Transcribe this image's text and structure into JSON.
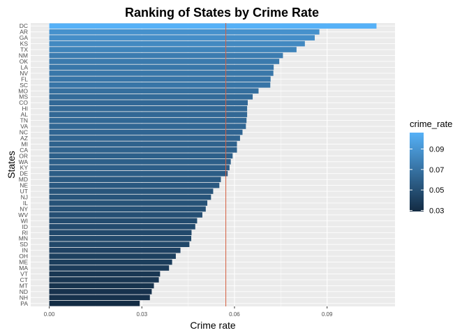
{
  "chart_data": {
    "type": "bar",
    "orientation": "horizontal",
    "title": "Ranking of States by Crime Rate",
    "xlabel": "Crime rate",
    "ylabel": "States",
    "xlim": [
      -0.006,
      0.112
    ],
    "xticks": [
      0.0,
      0.03,
      0.06,
      0.09
    ],
    "xtick_labels": [
      "0.00",
      "0.03",
      "0.06",
      "0.09"
    ],
    "reference_line": {
      "x": 0.0572,
      "color": "#d55e3f"
    },
    "grid": true,
    "legend": {
      "title": "crime_rate",
      "position": "right",
      "min": 0.029,
      "max": 0.106,
      "breaks": [
        0.03,
        0.05,
        0.07,
        0.09
      ],
      "break_labels": [
        "0.03",
        "0.05",
        "0.07",
        "0.09"
      ],
      "color_low": "#132b43",
      "color_high": "#56b1f7"
    },
    "categories": [
      "DC",
      "AR",
      "GA",
      "KS",
      "TX",
      "NM",
      "OK",
      "LA",
      "NV",
      "FL",
      "SC",
      "MO",
      "MS",
      "CO",
      "HI",
      "AL",
      "TN",
      "VA",
      "NC",
      "AZ",
      "MI",
      "CA",
      "OR",
      "WA",
      "KY",
      "DE",
      "MD",
      "NE",
      "UT",
      "NJ",
      "IL",
      "NY",
      "WV",
      "WI",
      "ID",
      "RI",
      "MN",
      "SD",
      "IN",
      "OH",
      "ME",
      "MA",
      "VT",
      "CT",
      "MT",
      "ND",
      "NH",
      "PA"
    ],
    "values": [
      0.106,
      0.0875,
      0.086,
      0.0828,
      0.0801,
      0.0757,
      0.0745,
      0.0727,
      0.0726,
      0.0717,
      0.0716,
      0.0678,
      0.0659,
      0.0643,
      0.0641,
      0.0641,
      0.0639,
      0.0637,
      0.0626,
      0.0618,
      0.0608,
      0.0608,
      0.0594,
      0.0588,
      0.0584,
      0.0578,
      0.0556,
      0.0551,
      0.0531,
      0.0524,
      0.0512,
      0.0507,
      0.0496,
      0.0479,
      0.0473,
      0.0461,
      0.046,
      0.0454,
      0.0425,
      0.041,
      0.0398,
      0.0388,
      0.0359,
      0.0355,
      0.0339,
      0.0332,
      0.0326,
      0.0293
    ]
  }
}
